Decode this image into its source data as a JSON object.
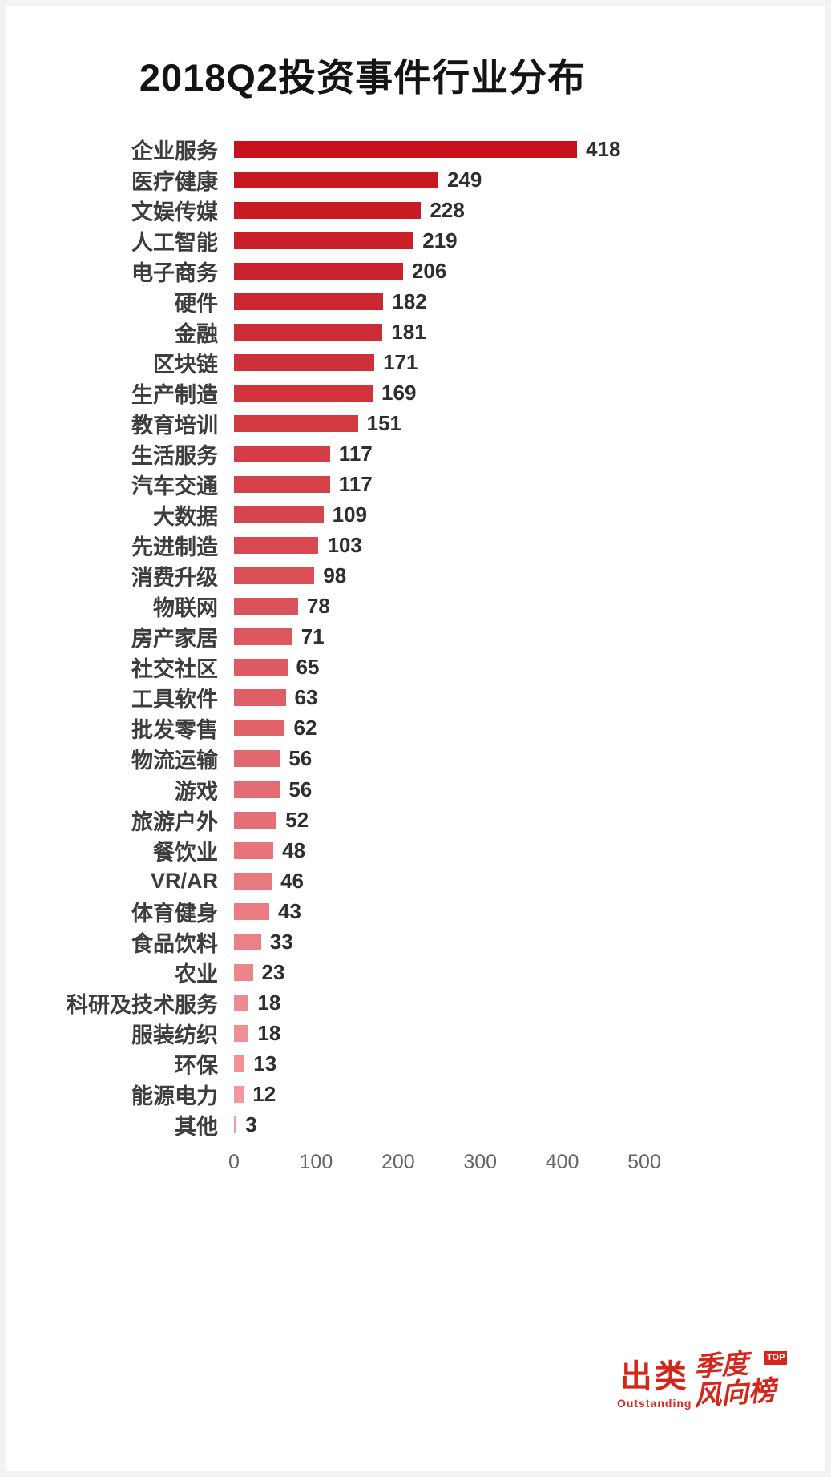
{
  "page": {
    "title": "2018Q2投资事件行业分布"
  },
  "chart_data": {
    "type": "bar",
    "orientation": "horizontal",
    "title": "2018Q2投资事件行业分布",
    "categories": [
      "企业服务",
      "医疗健康",
      "文娱传媒",
      "人工智能",
      "电子商务",
      "硬件",
      "金融",
      "区块链",
      "生产制造",
      "教育培训",
      "生活服务",
      "汽车交通",
      "大数据",
      "先进制造",
      "消费升级",
      "物联网",
      "房产家居",
      "社交社区",
      "工具软件",
      "批发零售",
      "物流运输",
      "游戏",
      "旅游户外",
      "餐饮业",
      "VR/AR",
      "体育健身",
      "食品饮料",
      "农业",
      "科研及技术服务",
      "服装纺织",
      "环保",
      "能源电力",
      "其他"
    ],
    "values": [
      418,
      249,
      228,
      219,
      206,
      182,
      181,
      171,
      169,
      151,
      117,
      117,
      109,
      103,
      98,
      78,
      71,
      65,
      63,
      62,
      56,
      56,
      52,
      48,
      46,
      43,
      33,
      23,
      18,
      18,
      13,
      12,
      3
    ],
    "xlim": [
      0,
      500
    ],
    "x_ticks": [
      0,
      100,
      200,
      300,
      400,
      500
    ],
    "grid": false,
    "legend": "none",
    "value_labels": "outside-end",
    "bar_color_start": "#C5121C",
    "bar_color_end": "#F49BA0",
    "category_label_color": "#3D3D3D",
    "value_label_color": "#2E2E2E",
    "tick_label_color": "#666666"
  },
  "footer": {
    "brand_primary": "出类",
    "brand_secondary": "Outstanding",
    "brand_color": "#D5261B",
    "script_line1": "季度",
    "script_line2": "风向榜",
    "badge_label": "TOP"
  }
}
